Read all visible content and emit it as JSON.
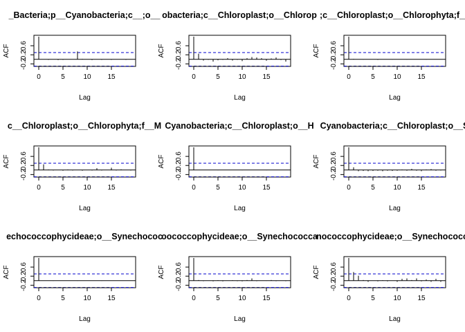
{
  "chart_data": [
    {
      "type": "bar",
      "title": "_Bacteria;p__Cyanobacteria;c__;o__",
      "xlabel": "Lag",
      "ylabel": "ACF",
      "xlim": [
        0,
        19
      ],
      "ylim": [
        -0.25,
        1.0
      ],
      "xticks": [
        0,
        5,
        10,
        15
      ],
      "yticks": [
        -0.2,
        0.2,
        0.6
      ],
      "ci": 0.3,
      "lags": [
        0,
        1,
        2,
        3,
        4,
        5,
        6,
        7,
        8,
        9,
        10,
        11,
        12,
        13,
        14,
        15,
        16,
        17,
        18,
        19
      ],
      "values": [
        1.0,
        0.01,
        -0.02,
        0.0,
        -0.03,
        -0.02,
        0.0,
        0.01,
        0.35,
        0.02,
        0.0,
        -0.03,
        0.01,
        -0.02,
        0.0,
        -0.02,
        0.01,
        0.0,
        -0.02,
        0.0
      ]
    },
    {
      "type": "bar",
      "title": "obacteria;c__Chloroplast;o__Chlorop",
      "xlabel": "Lag",
      "ylabel": "ACF",
      "xlim": [
        0,
        19
      ],
      "ylim": [
        -0.25,
        1.0
      ],
      "xticks": [
        0,
        5,
        10,
        15
      ],
      "yticks": [
        -0.2,
        0.2,
        0.6
      ],
      "ci": 0.3,
      "lags": [
        0,
        1,
        2,
        3,
        4,
        5,
        6,
        7,
        8,
        9,
        10,
        11,
        12,
        13,
        14,
        15,
        16,
        17,
        18,
        19
      ],
      "values": [
        1.0,
        0.25,
        -0.05,
        -0.02,
        -0.1,
        -0.04,
        -0.02,
        0.05,
        -0.05,
        -0.02,
        -0.08,
        0.05,
        0.1,
        0.08,
        0.05,
        -0.06,
        0.04,
        0.08,
        -0.03,
        -0.1
      ]
    },
    {
      "type": "bar",
      "title": ";c__Chloroplast;o__Chlorophyta;f__",
      "xlabel": "Lag",
      "ylabel": "ACF",
      "xlim": [
        0,
        19
      ],
      "ylim": [
        -0.25,
        1.0
      ],
      "xticks": [
        0,
        5,
        10,
        15
      ],
      "yticks": [
        -0.2,
        0.2,
        0.6
      ],
      "ci": 0.3,
      "lags": [
        0,
        1,
        2,
        3,
        4,
        5,
        6,
        7,
        8,
        9,
        10,
        11,
        12,
        13,
        14,
        15,
        16,
        17,
        18,
        19
      ],
      "values": [
        1.0,
        0.02,
        0.01,
        -0.01,
        0.0,
        0.01,
        -0.02,
        0.0,
        0.01,
        -0.01,
        0.0,
        0.01,
        -0.01,
        0.0,
        0.01,
        0.0,
        -0.01,
        0.0,
        0.01,
        0.0
      ]
    },
    {
      "type": "bar",
      "title": "c__Chloroplast;o__Chlorophyta;f__M",
      "xlabel": "Lag",
      "ylabel": "ACF",
      "xlim": [
        0,
        19
      ],
      "ylim": [
        -0.25,
        1.0
      ],
      "xticks": [
        0,
        5,
        10,
        15
      ],
      "yticks": [
        -0.2,
        0.2,
        0.6
      ],
      "ci": 0.3,
      "lags": [
        0,
        1,
        2,
        3,
        4,
        5,
        6,
        7,
        8,
        9,
        10,
        11,
        12,
        13,
        14,
        15,
        16,
        17,
        18,
        19
      ],
      "values": [
        1.0,
        0.25,
        0.02,
        -0.02,
        0.0,
        -0.03,
        0.02,
        -0.02,
        0.0,
        -0.03,
        0.01,
        -0.02,
        0.08,
        -0.02,
        0.0,
        0.1,
        -0.02,
        0.03,
        0.0,
        -0.02
      ]
    },
    {
      "type": "bar",
      "title": "Cyanobacteria;c__Chloroplast;o__H",
      "xlabel": "Lag",
      "ylabel": "ACF",
      "xlim": [
        0,
        19
      ],
      "ylim": [
        -0.25,
        1.0
      ],
      "xticks": [
        0,
        5,
        10,
        15
      ],
      "yticks": [
        -0.2,
        0.2,
        0.6
      ],
      "ci": 0.3,
      "lags": [
        0,
        1,
        2,
        3,
        4,
        5,
        6,
        7,
        8,
        9,
        10,
        11,
        12,
        13,
        14,
        15,
        16,
        17,
        18,
        19
      ],
      "values": [
        1.0,
        0.01,
        0.0,
        0.01,
        0.0,
        -0.01,
        0.0,
        0.01,
        0.0,
        0.0,
        -0.01,
        0.0,
        0.01,
        0.0,
        0.0,
        -0.01,
        0.0,
        0.0,
        0.01,
        0.0
      ]
    },
    {
      "type": "bar",
      "title": "Cyanobacteria;c__Chloroplast;o__S",
      "xlabel": "Lag",
      "ylabel": "ACF",
      "xlim": [
        0,
        19
      ],
      "ylim": [
        -0.25,
        1.0
      ],
      "xticks": [
        0,
        5,
        10,
        15
      ],
      "yticks": [
        -0.2,
        0.2,
        0.6
      ],
      "ci": 0.3,
      "lags": [
        0,
        1,
        2,
        3,
        4,
        5,
        6,
        7,
        8,
        9,
        10,
        11,
        12,
        13,
        14,
        15,
        16,
        17,
        18,
        19
      ],
      "values": [
        1.0,
        0.12,
        -0.05,
        -0.04,
        -0.05,
        -0.04,
        -0.03,
        -0.05,
        -0.03,
        -0.04,
        -0.03,
        0.02,
        -0.03,
        0.05,
        -0.03,
        -0.05,
        0.02,
        0.04,
        -0.03,
        -0.02
      ]
    },
    {
      "type": "bar",
      "title": "echococcophycideae;o__Synechococ",
      "xlabel": "Lag",
      "ylabel": "ACF",
      "xlim": [
        0,
        19
      ],
      "ylim": [
        -0.25,
        1.0
      ],
      "xticks": [
        0,
        5,
        10,
        15
      ],
      "yticks": [
        -0.2,
        0.2,
        0.6
      ],
      "ci": 0.3,
      "lags": [
        0,
        1,
        2,
        3,
        4,
        5,
        6,
        7,
        8,
        9,
        10,
        11,
        12,
        13,
        14,
        15,
        16,
        17,
        18,
        19
      ],
      "values": [
        1.0,
        0.01,
        0.0,
        -0.01,
        0.0,
        0.01,
        0.0,
        0.0,
        -0.01,
        0.0,
        0.01,
        0.0,
        0.0,
        -0.01,
        0.0,
        0.0,
        0.01,
        0.0,
        0.0,
        0.0
      ]
    },
    {
      "type": "bar",
      "title": "oococcophycideae;o__Synechococca",
      "xlabel": "Lag",
      "ylabel": "ACF",
      "xlim": [
        0,
        19
      ],
      "ylim": [
        -0.25,
        1.0
      ],
      "xticks": [
        0,
        5,
        10,
        15
      ],
      "yticks": [
        -0.2,
        0.2,
        0.6
      ],
      "ci": 0.3,
      "lags": [
        0,
        1,
        2,
        3,
        4,
        5,
        6,
        7,
        8,
        9,
        10,
        11,
        12,
        13,
        14,
        15,
        16,
        17,
        18,
        19
      ],
      "values": [
        1.0,
        0.03,
        -0.02,
        0.01,
        -0.03,
        0.02,
        -0.03,
        0.0,
        0.02,
        -0.02,
        -0.03,
        0.03,
        0.1,
        -0.02,
        0.0,
        -0.01,
        0.03,
        -0.02,
        0.0,
        -0.02
      ]
    },
    {
      "type": "bar",
      "title": "nococcophycideae;o__Synechococca",
      "xlabel": "Lag",
      "ylabel": "ACF",
      "xlim": [
        0,
        19
      ],
      "ylim": [
        -0.25,
        1.0
      ],
      "xticks": [
        0,
        5,
        10,
        15
      ],
      "yticks": [
        -0.2,
        0.2,
        0.6
      ],
      "ci": 0.3,
      "lags": [
        0,
        1,
        2,
        3,
        4,
        5,
        6,
        7,
        8,
        9,
        10,
        11,
        12,
        13,
        14,
        15,
        16,
        17,
        18,
        19
      ],
      "values": [
        1.0,
        0.38,
        0.22,
        0.03,
        -0.05,
        0.0,
        -0.03,
        0.02,
        -0.03,
        0.0,
        -0.05,
        0.08,
        0.1,
        0.03,
        0.1,
        -0.03,
        0.05,
        -0.05,
        0.08,
        -0.05
      ]
    }
  ],
  "colors": {
    "ci_line": "#0000cc",
    "bars": "#000000",
    "zero_line": "#000000"
  }
}
